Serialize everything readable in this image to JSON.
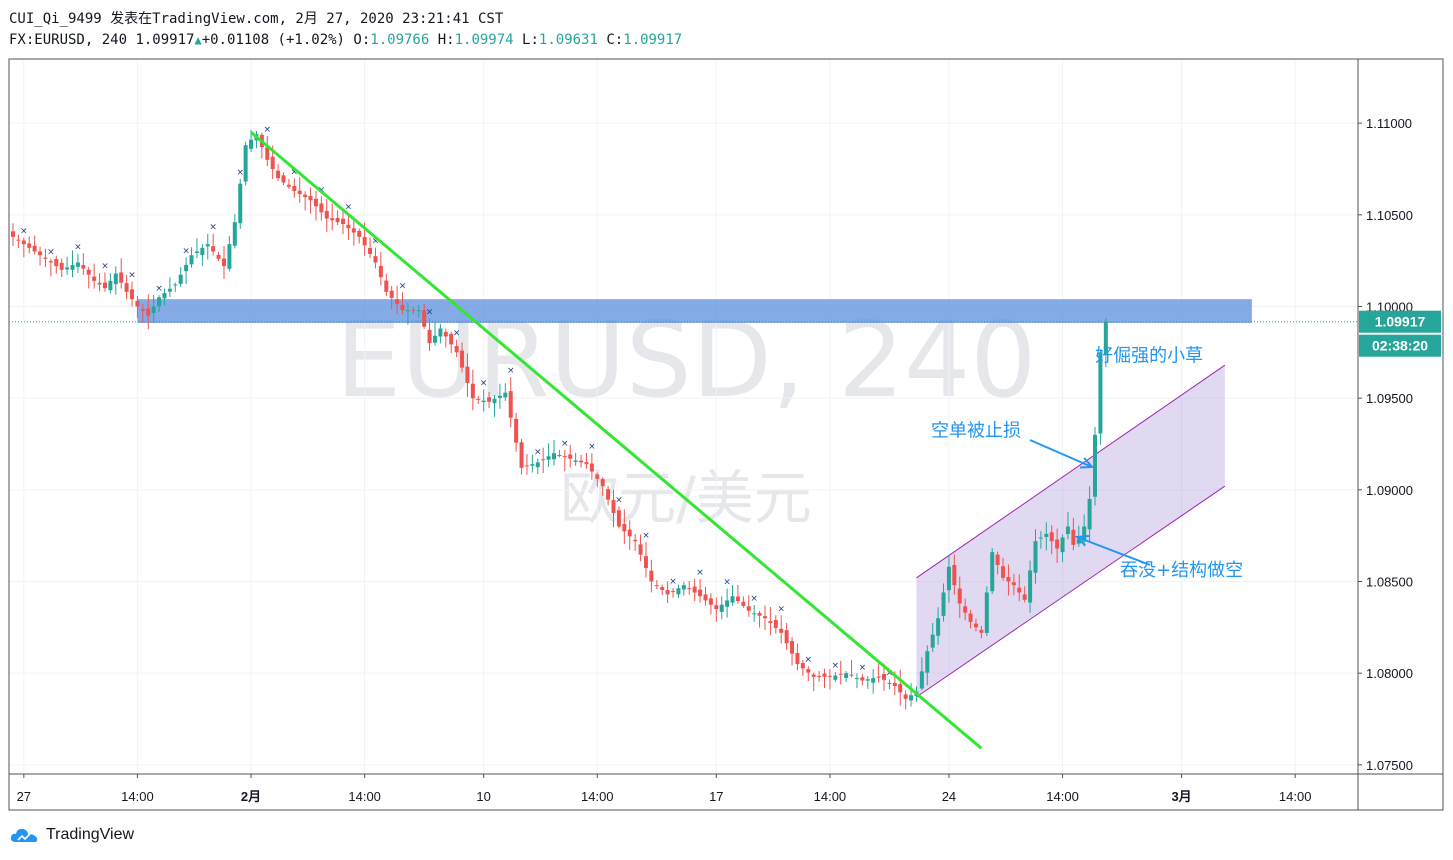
{
  "header": {
    "line1": "CUI_Qi_9499 发表在TradingView.com, 2月 27, 2020 23:21:41 CST",
    "symbol": "FX:EURUSD, 240 ",
    "last": "1.09917",
    "change": "+0.01108 (+1.02%)",
    "o_label": "O:",
    "o_value": "1.09766",
    "h_label": "H:",
    "h_value": "1.09974",
    "l_label": "L:",
    "l_value": "1.09631",
    "c_label": "C:",
    "c_value": "1.09917"
  },
  "watermark": {
    "main": "EURUSD, 240",
    "sub": "欧元/美元"
  },
  "brand": "TradingView",
  "colors": {
    "up": "#26a69a",
    "down": "#ef5350",
    "trendline": "#33e633",
    "zone": "#5b8fde",
    "channel": "#b39ddb",
    "annotation": "#2196f3",
    "price_tag": "#26a69a"
  },
  "price_tags": {
    "last": "1.09917",
    "countdown": "02:38:20"
  },
  "annotations": {
    "grass": "好倔强的小草",
    "stopped": "空单被止损",
    "engulf": "吞没+结构做空"
  },
  "chart_data": {
    "type": "candlestick",
    "symbol": "EURUSD",
    "timeframe": "240",
    "y_ticks": [
      "1.11000",
      "1.10500",
      "1.10000",
      "1.09500",
      "1.09000",
      "1.08500",
      "1.08000",
      "1.07500"
    ],
    "ylim": [
      1.0745,
      1.1135
    ],
    "x_ticks": [
      {
        "label": "27",
        "bar": 2,
        "bold": false
      },
      {
        "label": "14:00",
        "bar": 23,
        "bold": false
      },
      {
        "label": "2月",
        "bar": 44,
        "bold": true
      },
      {
        "label": "14:00",
        "bar": 65,
        "bold": false
      },
      {
        "label": "10",
        "bar": 87,
        "bold": false
      },
      {
        "label": "14:00",
        "bar": 108,
        "bold": false
      },
      {
        "label": "17",
        "bar": 130,
        "bold": false
      },
      {
        "label": "14:00",
        "bar": 151,
        "bold": false
      },
      {
        "label": "24",
        "bar": 173,
        "bold": false
      },
      {
        "label": "14:00",
        "bar": 194,
        "bold": false
      },
      {
        "label": "3月",
        "bar": 216,
        "bold": true
      },
      {
        "label": "14:00",
        "bar": 237,
        "bold": false
      }
    ],
    "anchors": [
      [
        0,
        1.1038
      ],
      [
        3,
        1.1032
      ],
      [
        6,
        1.1026
      ],
      [
        9,
        1.102
      ],
      [
        12,
        1.1024
      ],
      [
        15,
        1.1014
      ],
      [
        17,
        1.101
      ],
      [
        19,
        1.1018
      ],
      [
        21,
        1.1008
      ],
      [
        23,
        1.1
      ],
      [
        25,
        1.0995
      ],
      [
        27,
        1.1005
      ],
      [
        30,
        1.1012
      ],
      [
        33,
        1.1028
      ],
      [
        36,
        1.1034
      ],
      [
        39,
        1.1022
      ],
      [
        41,
        1.1046
      ],
      [
        43,
        1.1088
      ],
      [
        45,
        1.1094
      ],
      [
        47,
        1.108
      ],
      [
        49,
        1.107
      ],
      [
        52,
        1.1063
      ],
      [
        55,
        1.1058
      ],
      [
        58,
        1.1048
      ],
      [
        61,
        1.1045
      ],
      [
        64,
        1.1038
      ],
      [
        67,
        1.1024
      ],
      [
        69,
        1.1008
      ],
      [
        72,
        1.0998
      ],
      [
        75,
        1.0998
      ],
      [
        77,
        1.098
      ],
      [
        79,
        1.0988
      ],
      [
        82,
        1.0975
      ],
      [
        85,
        1.095
      ],
      [
        88,
        1.0948
      ],
      [
        91,
        1.0953
      ],
      [
        94,
        1.0912
      ],
      [
        97,
        1.0915
      ],
      [
        100,
        1.092
      ],
      [
        103,
        1.0917
      ],
      [
        106,
        1.0914
      ],
      [
        109,
        1.0902
      ],
      [
        112,
        1.088
      ],
      [
        115,
        1.0872
      ],
      [
        118,
        1.085
      ],
      [
        121,
        1.0843
      ],
      [
        124,
        1.0848
      ],
      [
        127,
        1.0842
      ],
      [
        130,
        1.0835
      ],
      [
        133,
        1.0842
      ],
      [
        136,
        1.0834
      ],
      [
        139,
        1.083
      ],
      [
        142,
        1.0822
      ],
      [
        145,
        1.0805
      ],
      [
        148,
        1.0798
      ],
      [
        151,
        1.0798
      ],
      [
        154,
        1.08
      ],
      [
        157,
        1.0796
      ],
      [
        160,
        1.0798
      ],
      [
        163,
        1.0793
      ],
      [
        165,
        1.0786
      ],
      [
        167,
        1.079
      ],
      [
        169,
        1.0812
      ],
      [
        171,
        1.083
      ],
      [
        173,
        1.0858
      ],
      [
        175,
        1.0838
      ],
      [
        177,
        1.0828
      ],
      [
        179,
        1.0822
      ],
      [
        181,
        1.0866
      ],
      [
        183,
        1.0852
      ],
      [
        185,
        1.0848
      ],
      [
        187,
        1.084
      ],
      [
        189,
        1.0872
      ],
      [
        191,
        1.0876
      ],
      [
        193,
        1.0868
      ],
      [
        195,
        1.088
      ],
      [
        196,
        1.087
      ],
      [
        197,
        1.0873
      ],
      [
        198,
        1.088
      ],
      [
        199,
        1.0895
      ],
      [
        200,
        1.093
      ],
      [
        201,
        1.0975
      ],
      [
        202,
        1.0992
      ]
    ],
    "last_price": 1.09917,
    "resistance_zone": {
      "from": 1.0991,
      "to": 1.1004,
      "start_bar": 23,
      "end_bar": 229
    },
    "trendline": {
      "from": [
        44,
        1.1095
      ],
      "to": [
        179,
        1.0759
      ]
    },
    "channel": {
      "start_bar": 167,
      "end_bar": 224,
      "top": [
        1.0852,
        1.0968
      ],
      "bottom": [
        1.0787,
        1.0902
      ]
    },
    "annotations": [
      {
        "text_key": "grass",
        "bar": 210,
        "price": 1.097
      },
      {
        "text_key": "stopped",
        "bar": 178,
        "price": 1.0929
      },
      {
        "text_key": "engulf",
        "bar": 216,
        "price": 1.0853
      }
    ]
  }
}
